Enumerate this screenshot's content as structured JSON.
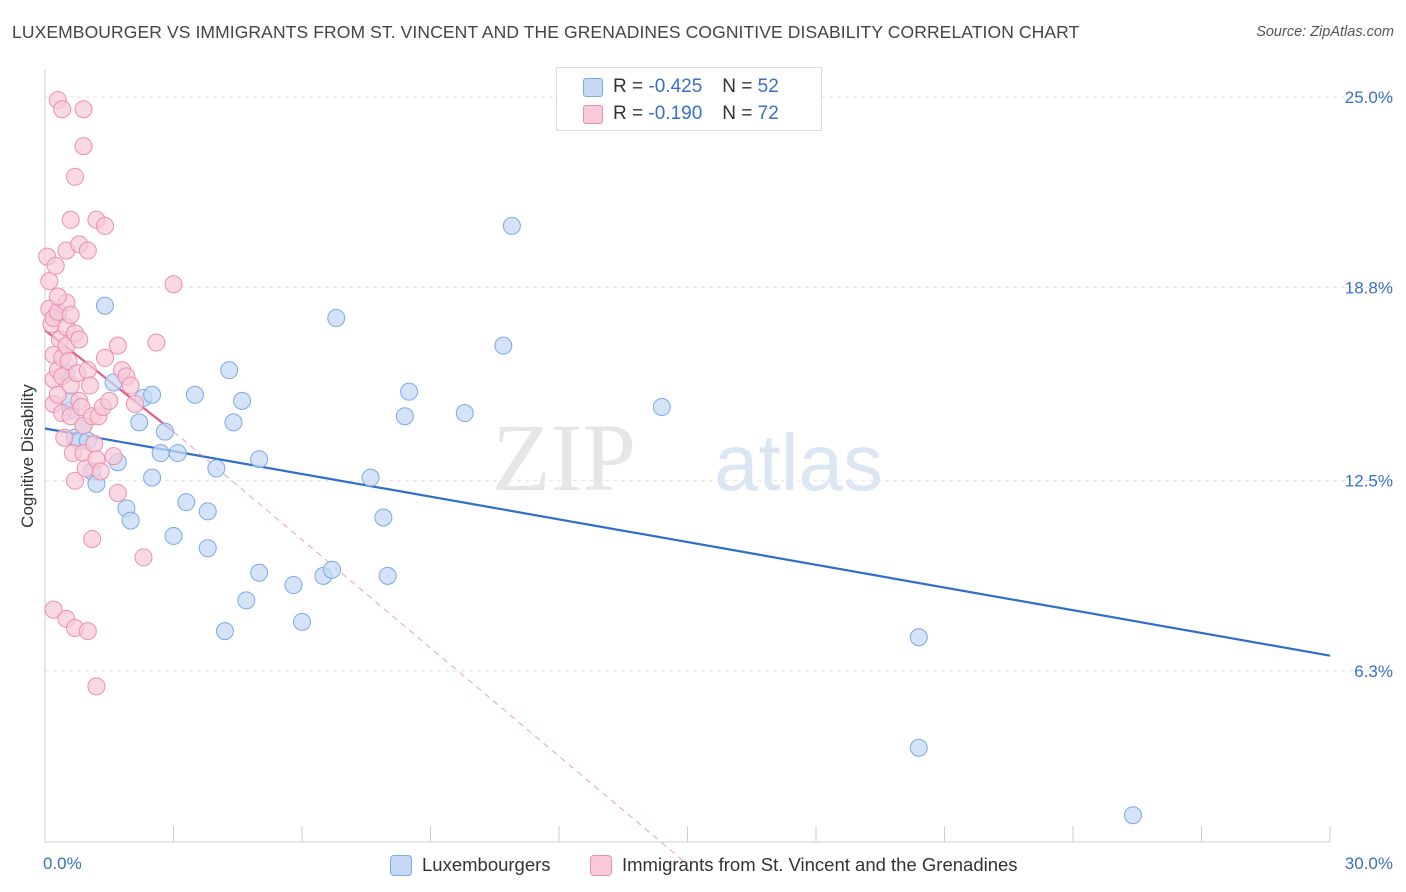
{
  "title": "LUXEMBOURGER VS IMMIGRANTS FROM ST. VINCENT AND THE GRENADINES COGNITIVE DISABILITY CORRELATION CHART",
  "source": "Source: ZipAtlas.com",
  "watermark": {
    "zip": "ZIP",
    "atlas": "atlas"
  },
  "legend": {
    "r_label": "R =",
    "n_label": "N =",
    "series": [
      {
        "r": "-0.425",
        "n": "52"
      },
      {
        "r": "-0.190",
        "n": "72"
      }
    ]
  },
  "colors": {
    "blue_fill": "#c5d9f5",
    "blue_stroke": "#7da9e4",
    "blue_line": "#2f6fcb",
    "pink_fill": "#f8c9d8",
    "pink_stroke": "#ec8fae",
    "pink_line": "#e0608a",
    "grid": "#e3e3e3",
    "tick_label": "#3a6fc4"
  },
  "chart_data": {
    "type": "scatter",
    "xlabel": "",
    "ylabel": "Cognitive Disability",
    "xlim": [
      0,
      30
    ],
    "ylim": [
      0,
      26
    ],
    "x_tick_labels": [
      "0.0%",
      "30.0%"
    ],
    "y_ticks": [
      6.3,
      12.5,
      18.8,
      25.0
    ],
    "y_tick_labels": [
      "6.3%",
      "12.5%",
      "18.8%",
      "25.0%"
    ],
    "grid": "horizontal dashed",
    "legend_position": "top-center",
    "series": [
      {
        "name": "Luxembourgers",
        "points": [
          [
            0.3,
            17.9
          ],
          [
            0.5,
            16.0
          ],
          [
            0.6,
            14.8
          ],
          [
            0.6,
            15.1
          ],
          [
            0.7,
            13.9
          ],
          [
            0.8,
            13.8
          ],
          [
            0.9,
            14.3
          ],
          [
            1.0,
            13.8
          ],
          [
            1.1,
            12.8
          ],
          [
            1.2,
            12.4
          ],
          [
            1.4,
            18.2
          ],
          [
            1.6,
            15.7
          ],
          [
            1.7,
            13.1
          ],
          [
            1.9,
            11.6
          ],
          [
            2.0,
            11.2
          ],
          [
            2.2,
            14.4
          ],
          [
            2.3,
            15.2
          ],
          [
            2.5,
            15.3
          ],
          [
            2.5,
            12.6
          ],
          [
            2.7,
            13.4
          ],
          [
            2.8,
            14.1
          ],
          [
            3.0,
            10.7
          ],
          [
            3.1,
            13.4
          ],
          [
            3.3,
            11.8
          ],
          [
            3.5,
            15.3
          ],
          [
            3.8,
            11.5
          ],
          [
            3.8,
            10.3
          ],
          [
            4.0,
            12.9
          ],
          [
            4.2,
            7.6
          ],
          [
            4.3,
            16.1
          ],
          [
            4.4,
            14.4
          ],
          [
            4.6,
            15.1
          ],
          [
            4.7,
            8.6
          ],
          [
            5.0,
            9.5
          ],
          [
            5.0,
            13.2
          ],
          [
            5.8,
            9.1
          ],
          [
            6.0,
            7.9
          ],
          [
            6.5,
            9.4
          ],
          [
            6.7,
            9.6
          ],
          [
            6.8,
            17.8
          ],
          [
            7.6,
            12.6
          ],
          [
            7.9,
            11.3
          ],
          [
            8.0,
            9.4
          ],
          [
            8.5,
            15.4
          ],
          [
            8.4,
            14.6
          ],
          [
            9.8,
            14.7
          ],
          [
            10.7,
            16.9
          ],
          [
            10.9,
            20.8
          ],
          [
            14.4,
            14.9
          ],
          [
            20.4,
            7.4
          ],
          [
            20.4,
            3.8
          ],
          [
            25.4,
            1.6
          ]
        ]
      },
      {
        "name": "Immigrants from St. Vincent and the Grenades",
        "points": [
          [
            0.05,
            19.8
          ],
          [
            0.1,
            19.0
          ],
          [
            0.1,
            18.1
          ],
          [
            0.15,
            17.6
          ],
          [
            0.2,
            16.6
          ],
          [
            0.2,
            15.8
          ],
          [
            0.2,
            15.0
          ],
          [
            0.2,
            17.8
          ],
          [
            0.25,
            19.5
          ],
          [
            0.3,
            18.0
          ],
          [
            0.3,
            16.1
          ],
          [
            0.3,
            15.3
          ],
          [
            0.35,
            17.1
          ],
          [
            0.4,
            16.5
          ],
          [
            0.4,
            15.9
          ],
          [
            0.4,
            14.7
          ],
          [
            0.45,
            13.9
          ],
          [
            0.5,
            18.3
          ],
          [
            0.5,
            17.5
          ],
          [
            0.5,
            16.9
          ],
          [
            0.55,
            16.4
          ],
          [
            0.6,
            15.6
          ],
          [
            0.6,
            14.6
          ],
          [
            0.65,
            13.4
          ],
          [
            0.7,
            12.5
          ],
          [
            0.7,
            17.3
          ],
          [
            0.75,
            16.0
          ],
          [
            0.8,
            15.1
          ],
          [
            0.85,
            14.9
          ],
          [
            0.9,
            14.3
          ],
          [
            0.9,
            13.4
          ],
          [
            0.95,
            12.9
          ],
          [
            1.0,
            16.1
          ],
          [
            1.05,
            15.6
          ],
          [
            1.1,
            14.6
          ],
          [
            1.15,
            13.7
          ],
          [
            1.2,
            13.2
          ],
          [
            1.25,
            14.6
          ],
          [
            1.3,
            12.8
          ],
          [
            1.35,
            14.9
          ],
          [
            1.4,
            16.5
          ],
          [
            1.5,
            15.1
          ],
          [
            1.6,
            13.3
          ],
          [
            1.7,
            12.1
          ],
          [
            1.8,
            16.1
          ],
          [
            1.9,
            15.9
          ],
          [
            2.0,
            15.6
          ],
          [
            2.1,
            15.0
          ],
          [
            2.3,
            10.0
          ],
          [
            2.6,
            17.0
          ],
          [
            3.0,
            18.9
          ],
          [
            1.7,
            16.9
          ],
          [
            0.5,
            20.0
          ],
          [
            0.6,
            21.0
          ],
          [
            0.8,
            20.2
          ],
          [
            1.0,
            20.0
          ],
          [
            1.2,
            21.0
          ],
          [
            1.4,
            20.8
          ],
          [
            0.7,
            22.4
          ],
          [
            0.9,
            23.4
          ],
          [
            0.3,
            24.9
          ],
          [
            0.4,
            24.6
          ],
          [
            0.9,
            24.6
          ],
          [
            0.2,
            8.3
          ],
          [
            0.5,
            8.0
          ],
          [
            0.7,
            7.7
          ],
          [
            1.0,
            7.6
          ],
          [
            1.2,
            5.8
          ],
          [
            1.1,
            10.6
          ],
          [
            0.3,
            18.5
          ],
          [
            0.6,
            17.9
          ],
          [
            0.8,
            17.1
          ]
        ]
      }
    ],
    "trend_lines": [
      {
        "series": "Luxembourgers",
        "from": [
          0,
          14.2
        ],
        "to": [
          30,
          6.8
        ],
        "style": "solid"
      },
      {
        "series": "Immigrants from St. Vincent and the Grenades",
        "from": [
          0,
          17.4
        ],
        "to": [
          3.0,
          14.1
        ],
        "style": "solid"
      },
      {
        "series": "Immigrants from St. Vincent and the Grenades",
        "from": [
          3.0,
          14.1
        ],
        "to": [
          15.0,
          0
        ],
        "style": "dashed"
      }
    ]
  },
  "bottom_legend": [
    "Luxembourgers",
    "Immigrants from St. Vincent and the Grenadines"
  ]
}
